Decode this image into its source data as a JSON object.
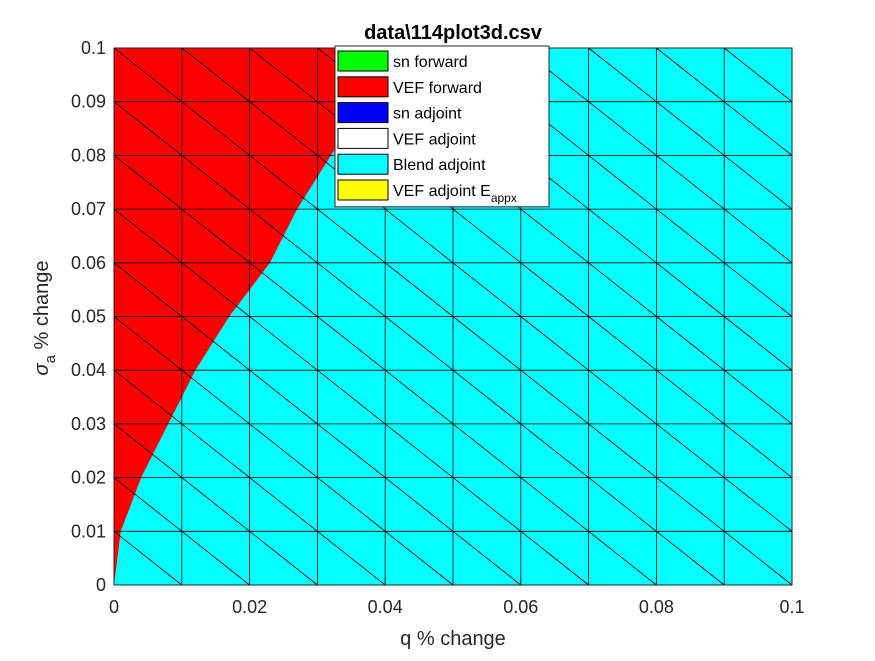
{
  "chart_data": {
    "type": "area",
    "title": "data\\114plot3d.csv",
    "xlabel": "q % change",
    "ylabel": {
      "symbol": "σ",
      "subscript": "a",
      "suffix": " % change"
    },
    "xlim": [
      0,
      0.1
    ],
    "ylim": [
      0,
      0.1
    ],
    "x_ticks": [
      "0",
      "0.02",
      "0.04",
      "0.06",
      "0.08",
      "0.1"
    ],
    "y_ticks": [
      "0",
      "0.01",
      "0.02",
      "0.03",
      "0.04",
      "0.05",
      "0.06",
      "0.07",
      "0.08",
      "0.09",
      "0.1"
    ],
    "grid": "triangular mesh, 0.01 spacing",
    "legend": {
      "placement": "top",
      "entries": [
        {
          "name": "sn forward",
          "color": "#00ff00"
        },
        {
          "name": "VEF forward",
          "color": "#ff0000"
        },
        {
          "name": "sn adjoint",
          "color": "#0000ff"
        },
        {
          "name": "VEF adjoint",
          "color": "#ffffff"
        },
        {
          "name": "Blend adjoint",
          "color": "#00ffff"
        },
        {
          "name": "VEF adjoint E",
          "subscript": "appx",
          "color": "#ffff00"
        }
      ]
    },
    "regions": [
      {
        "series": "VEF forward",
        "color": "#ff0000",
        "boundary": [
          [
            0,
            0
          ],
          [
            0.001,
            0.01
          ],
          [
            0.004,
            0.02
          ],
          [
            0.008,
            0.03
          ],
          [
            0.012,
            0.04
          ],
          [
            0.017,
            0.05
          ],
          [
            0.023,
            0.06
          ],
          [
            0.027,
            0.07
          ],
          [
            0.032,
            0.08
          ],
          [
            0.037,
            0.09
          ],
          [
            0.042,
            0.1
          ]
        ]
      },
      {
        "series": "Blend adjoint",
        "color": "#00ffff"
      }
    ]
  }
}
